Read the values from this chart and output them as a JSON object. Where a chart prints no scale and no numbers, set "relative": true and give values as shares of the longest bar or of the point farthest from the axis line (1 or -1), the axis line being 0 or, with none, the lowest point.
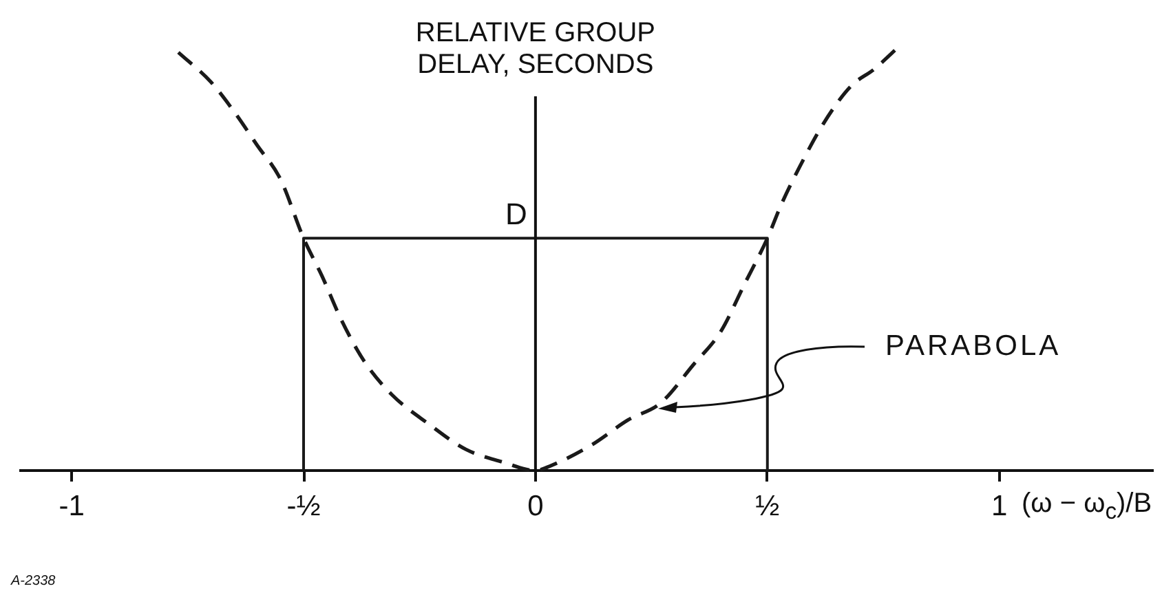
{
  "chart_data": {
    "type": "line",
    "relative": true,
    "ylabel": "RELATIVE GROUP DELAY, SECONDS",
    "xlabel": "(ω − ω$_{c}$)/B",
    "xlim": [
      -1.11,
      1.33
    ],
    "xticks": [
      -1,
      {
        "value": -0.5,
        "label": "-½"
      },
      0,
      {
        "value": 0.5,
        "label": "½"
      },
      1
    ],
    "marker": "none",
    "series": [
      {
        "type": "line",
        "line_style": "dashed",
        "color": "#1a1a1a",
        "x": [
          -0.77,
          -0.7,
          -0.65,
          -0.6,
          -0.55,
          -0.5,
          -0.46,
          -0.42,
          -0.37,
          -0.31,
          -0.23,
          -0.15,
          -0.07,
          0,
          0.03,
          0.12,
          0.2,
          0.27,
          0.34,
          0.4,
          0.45,
          0.5,
          0.53,
          0.57,
          0.62,
          0.68,
          0.73,
          0.78
        ],
        "values": [
          0.99,
          0.92,
          0.85,
          0.77,
          0.69,
          0.55,
          0.46,
          0.36,
          0.26,
          0.18,
          0.11,
          0.05,
          0.02,
          0,
          0.01,
          0.06,
          0.12,
          0.16,
          0.25,
          0.33,
          0.44,
          0.55,
          0.63,
          0.72,
          0.82,
          0.91,
          0.95,
          1
        ]
      },
      {
        "type": "line",
        "line_style": "solid",
        "color": "#1a1a1a",
        "x": [
          -0.5,
          -0.5,
          0.5,
          0.5
        ],
        "values": [
          0,
          0.55,
          0.55,
          0
        ]
      }
    ],
    "annotations": [
      {
        "text": "D",
        "x": 0,
        "y": 0.55
      },
      "PARABOLA",
      "A-2338"
    ]
  }
}
